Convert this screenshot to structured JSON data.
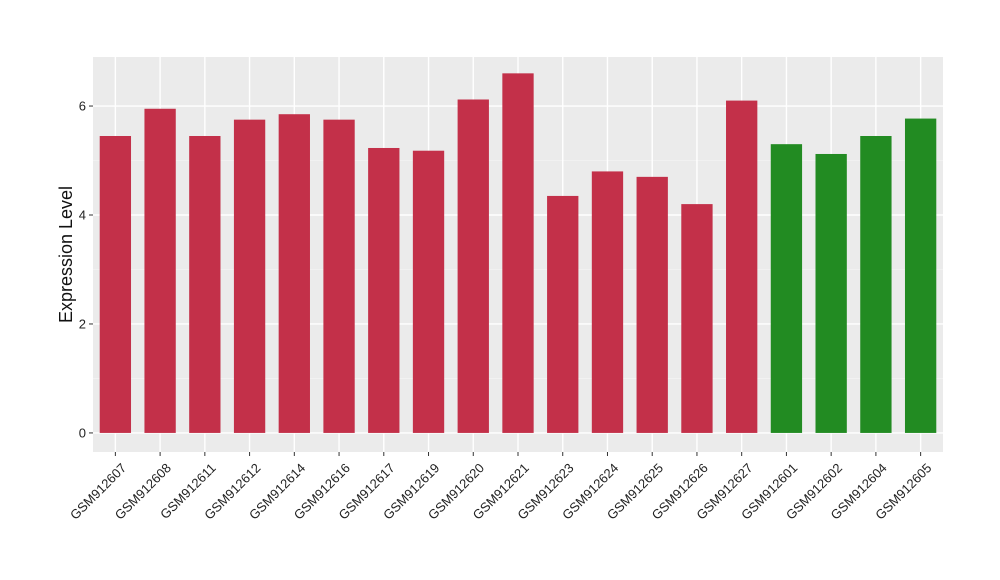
{
  "chart_data": {
    "type": "bar",
    "title": "",
    "xlabel": "",
    "ylabel": "Expression Level",
    "ylim": [
      -0.35,
      6.9
    ],
    "yticks": [
      0,
      2,
      4,
      6
    ],
    "grid": true,
    "legend": "none",
    "colors": {
      "panel_bg": "#ebebeb",
      "grid_major": "#ffffff",
      "grid_minor": "#f3f3f3",
      "tick": "#333333"
    },
    "categories": [
      "GSM912607",
      "GSM912608",
      "GSM912611",
      "GSM912612",
      "GSM912614",
      "GSM912616",
      "GSM912617",
      "GSM912619",
      "GSM912620",
      "GSM912621",
      "GSM912623",
      "GSM912624",
      "GSM912625",
      "GSM912626",
      "GSM912627",
      "GSM912601",
      "GSM912602",
      "GSM912604",
      "GSM912605"
    ],
    "values": [
      5.45,
      5.95,
      5.45,
      5.75,
      5.85,
      5.75,
      5.23,
      5.18,
      6.12,
      6.6,
      4.35,
      4.8,
      4.7,
      4.2,
      6.1,
      5.3,
      5.12,
      5.45,
      5.77
    ],
    "bar_colors": [
      "#c33049",
      "#c33049",
      "#c33049",
      "#c33049",
      "#c33049",
      "#c33049",
      "#c33049",
      "#c33049",
      "#c33049",
      "#c33049",
      "#c33049",
      "#c33049",
      "#c33049",
      "#c33049",
      "#c33049",
      "#228b22",
      "#228b22",
      "#228b22",
      "#228b22"
    ]
  }
}
